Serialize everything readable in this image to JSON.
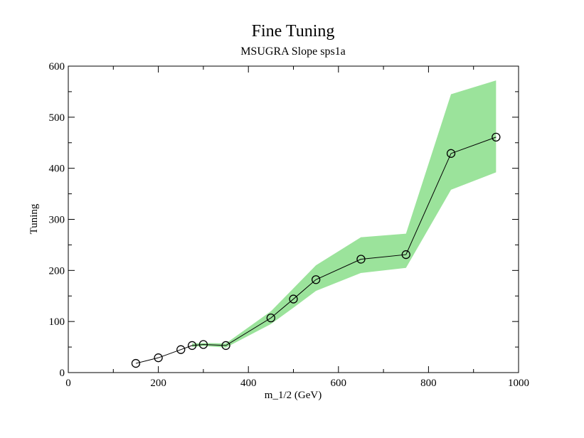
{
  "chart_data": {
    "type": "line",
    "title": "Fine Tuning",
    "subtitle": "MSUGRA Slope sps1a",
    "xlabel": "m_1/2 (GeV)",
    "ylabel": "Tuning",
    "xlim": [
      0,
      1000
    ],
    "ylim": [
      0,
      600
    ],
    "x_ticks": [
      0,
      200,
      400,
      600,
      800,
      1000
    ],
    "y_ticks": [
      0,
      100,
      200,
      300,
      400,
      500,
      600
    ],
    "grid": false,
    "colors": {
      "band": "#9be39b",
      "line": "#000000"
    },
    "series": [
      {
        "x": [
          150,
          200,
          250,
          275,
          300,
          350,
          450,
          500,
          550,
          650,
          750,
          850,
          950
        ],
        "values": [
          18,
          29,
          45,
          53,
          55,
          53,
          107,
          144,
          182,
          222,
          231,
          429,
          461
        ]
      }
    ],
    "band": {
      "x": [
        275,
        300,
        350,
        450,
        500,
        550,
        650,
        750,
        850,
        950
      ],
      "upper": [
        57,
        58,
        57,
        120,
        165,
        210,
        265,
        272,
        545,
        572
      ],
      "lower": [
        50,
        52,
        49,
        95,
        127,
        160,
        195,
        205,
        358,
        392
      ]
    }
  }
}
